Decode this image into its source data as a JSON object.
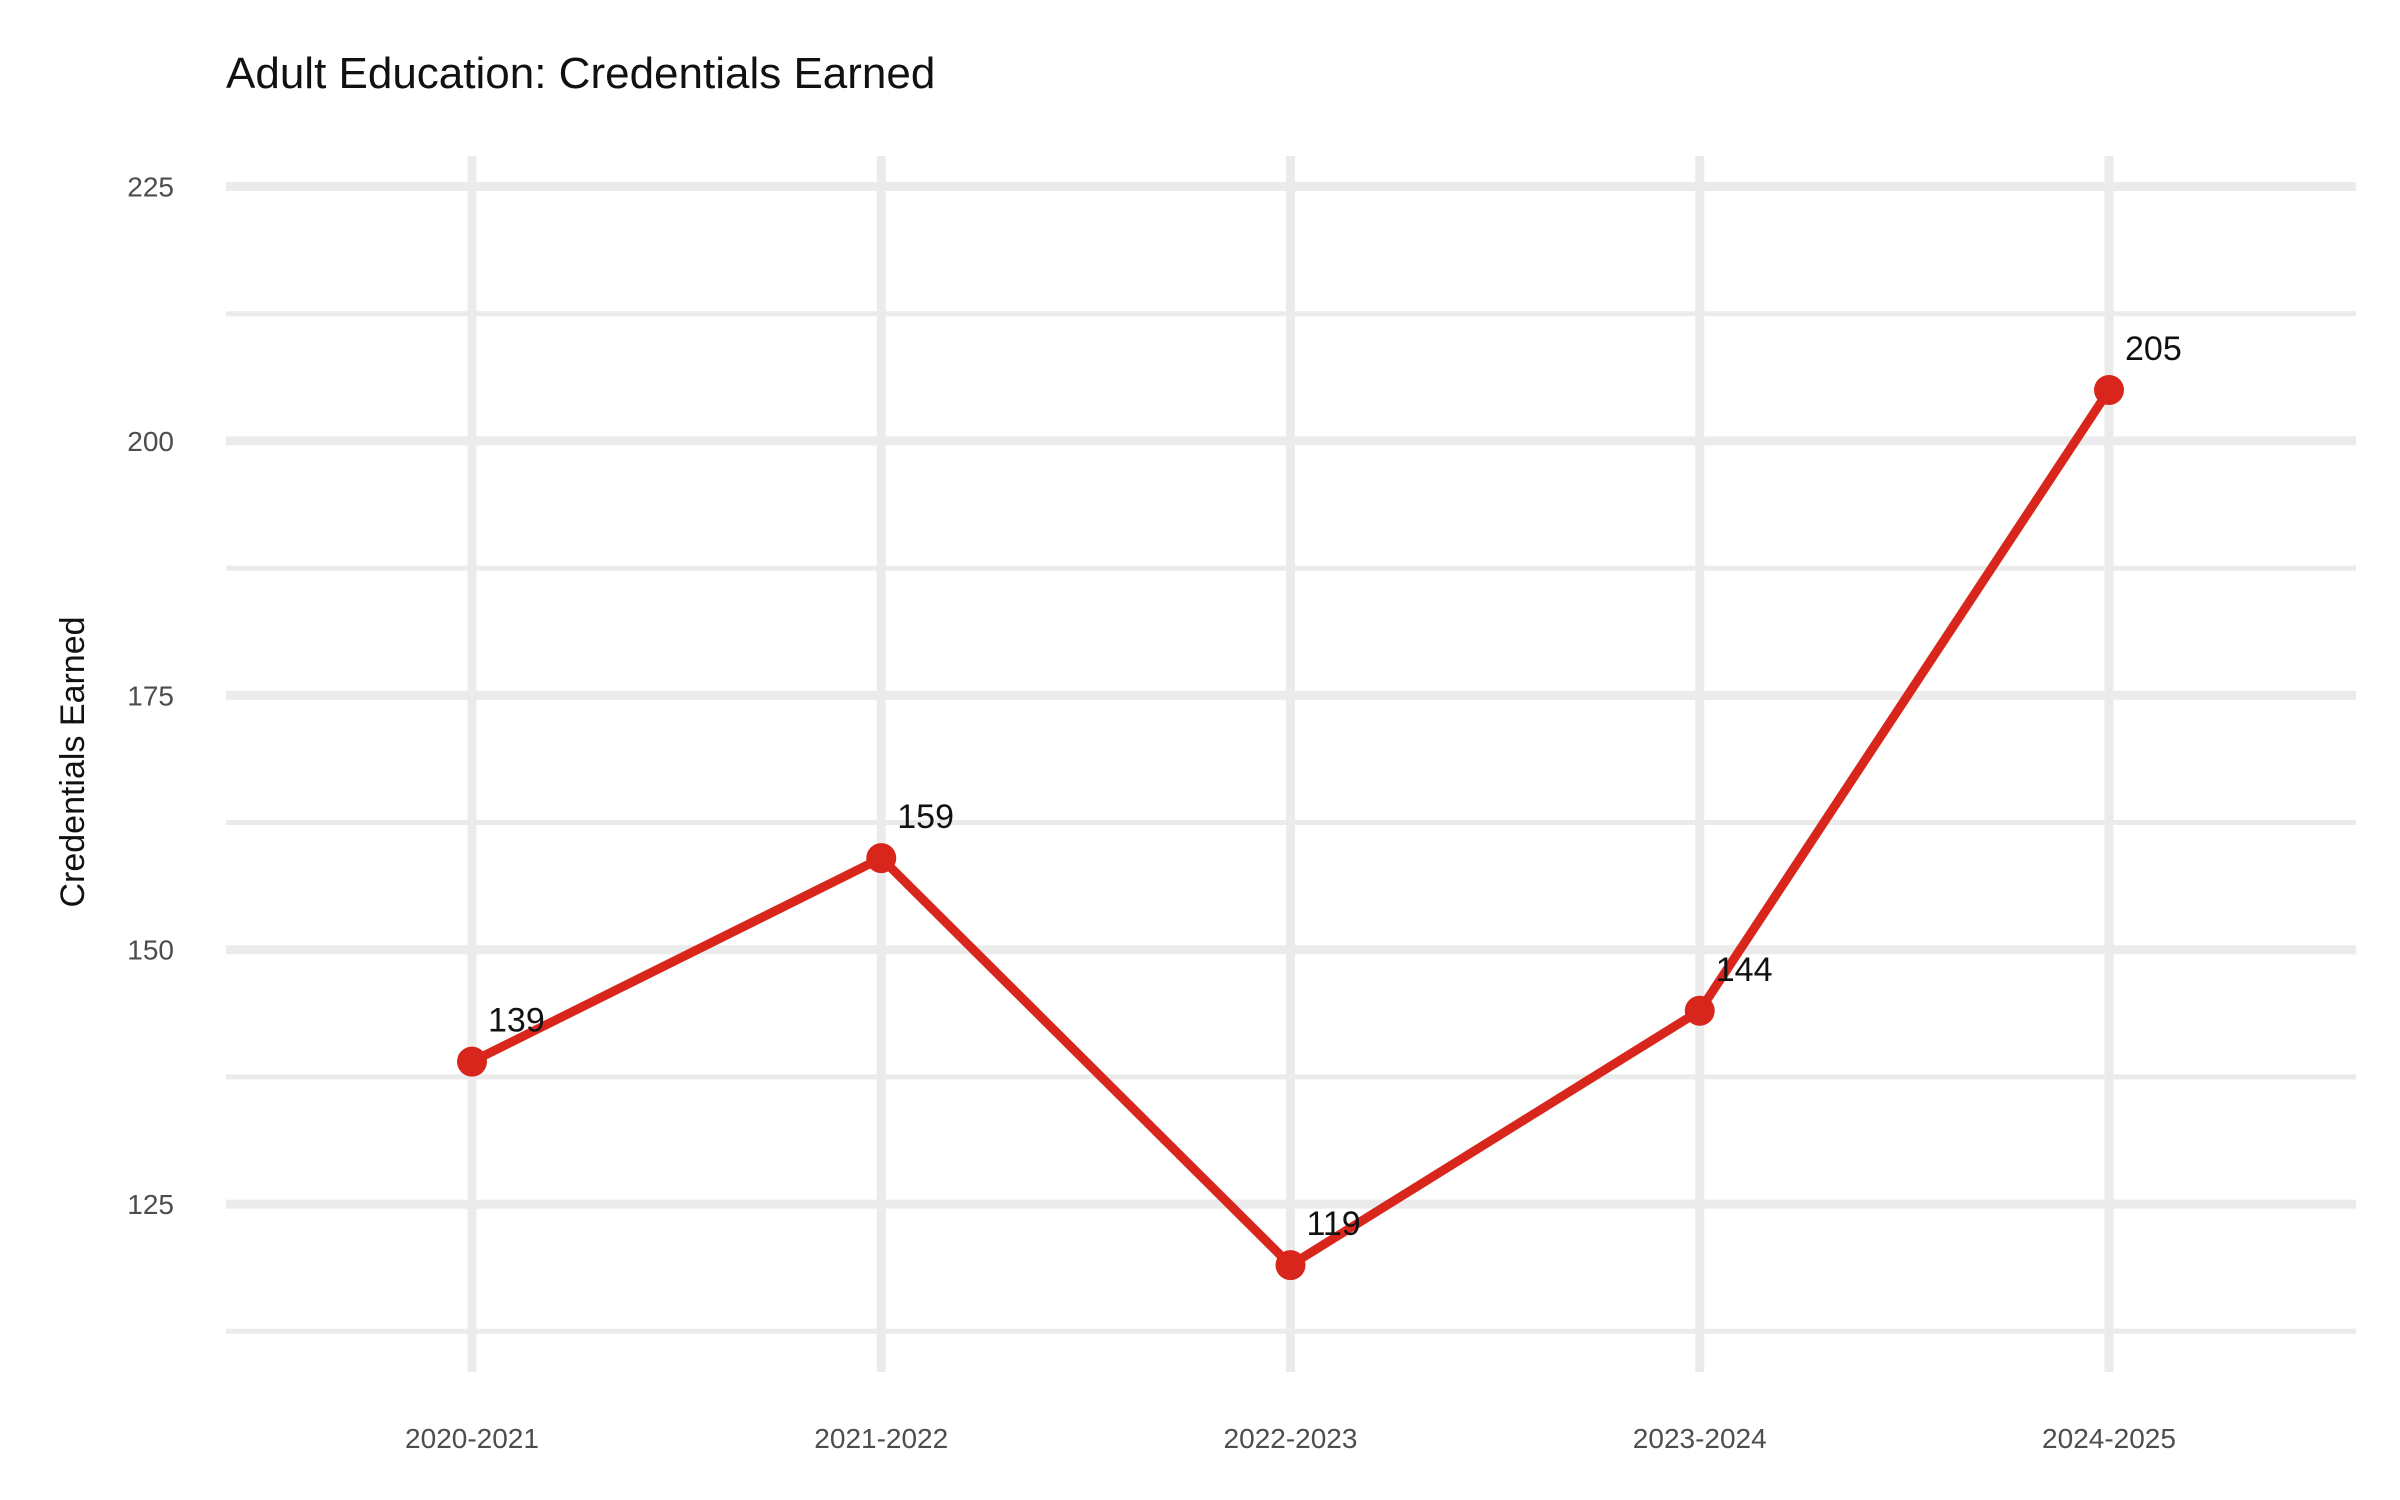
{
  "chart_data": {
    "type": "line",
    "title": "Adult Education: Credentials Earned",
    "xlabel": "",
    "ylabel": "Credentials Earned",
    "categories": [
      "2020-2021",
      "2021-2022",
      "2022-2023",
      "2023-2024",
      "2024-2025"
    ],
    "series": [
      {
        "values": [
          139,
          159,
          119,
          144,
          205
        ],
        "color": "#d9261c"
      }
    ],
    "data_labels": [
      "139",
      "159",
      "119",
      "144",
      "205"
    ],
    "ylim": [
      108.5,
      228
    ],
    "y_ticks": [
      125,
      150,
      175,
      200,
      225
    ],
    "y_tick_labels": [
      "125",
      "150",
      "175",
      "200",
      "225"
    ],
    "y_minor_ticks": [
      112.5,
      137.5,
      162.5,
      187.5,
      212.5
    ],
    "grid": true,
    "legend": "none",
    "colors": {
      "line": "#d9261c",
      "grid": "#ebebeb",
      "background": "#ffffff"
    }
  }
}
